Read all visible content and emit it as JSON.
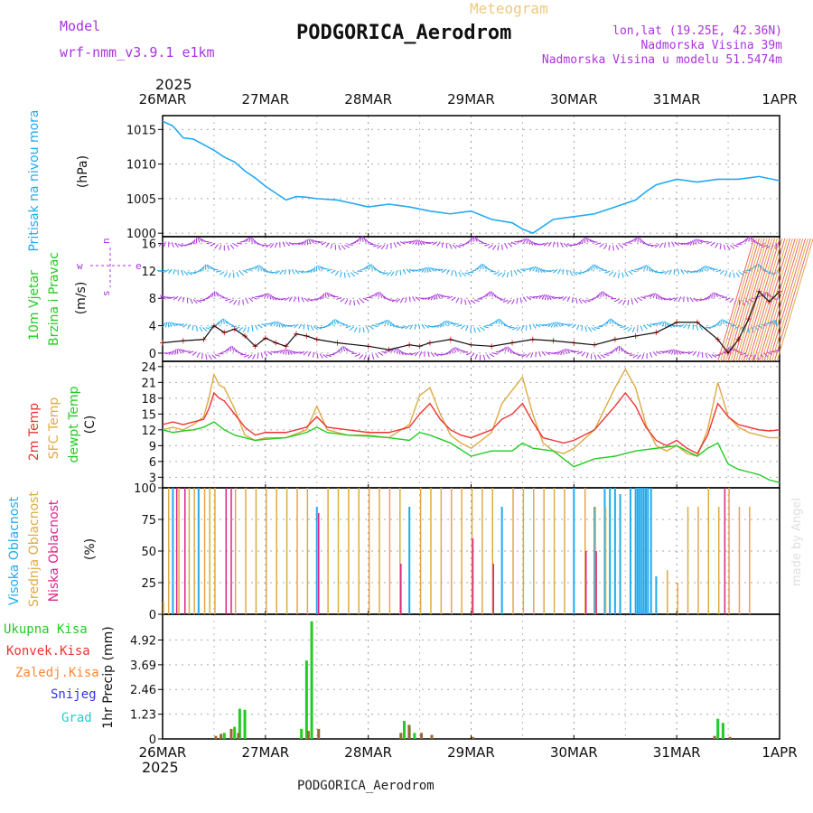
{
  "header": {
    "model_label": "Model",
    "model_name": "wrf-nmm_v3.9.1 e1km",
    "meteogram_label": "Meteogram",
    "station": "PODGORICA_Aerodrom",
    "coords": "lon,lat (19.25E, 42.36N)",
    "elevation": "Nadmorska Visina 39m",
    "model_elevation": "Nadmorska Visina u modelu 51.5474m",
    "year": "2025"
  },
  "footer": {
    "station": "PODGORICA_Aerodrom",
    "year": "2025",
    "credit": "made by Angel"
  },
  "colors": {
    "pressure": "#22aaee",
    "wind_label": "#22cc22",
    "wind_kt": "#aa33dd",
    "t2m": "#ee3333",
    "sfc": "#ddaa44",
    "dewpt": "#22cc22",
    "high_cloud": "#22aaee",
    "mid_cloud": "#ddaa44",
    "low_cloud": "#dd2288",
    "ukupna": "#22cc22",
    "konvek": "#ee3333",
    "zaledj": "#ff8833",
    "snijeg": "#3333ee",
    "grad": "#22cccc"
  },
  "chart_data": [
    {
      "type": "line",
      "panel": "pressure",
      "title": "",
      "ylabel_left": "Pritisak na nivou mora",
      "ylabel_unit": "(hPa)",
      "x_categories": [
        "26MAR",
        "27MAR",
        "28MAR",
        "29MAR",
        "30MAR",
        "31MAR",
        "1APR"
      ],
      "yticks": [
        1000,
        1005,
        1010,
        1015
      ],
      "ylim": [
        999.5,
        1017
      ],
      "series": [
        {
          "x": [
            0,
            0.1,
            0.2,
            0.3,
            0.5,
            0.6,
            0.7,
            0.8,
            0.9,
            1.0,
            1.1,
            1.2,
            1.3,
            1.4,
            1.5,
            1.7,
            2.0,
            2.2,
            2.4,
            2.6,
            2.8,
            3.0,
            3.2,
            3.4,
            3.5,
            3.6,
            3.8,
            4.0,
            4.2,
            4.4,
            4.6,
            4.7,
            4.8,
            5.0,
            5.2,
            5.4,
            5.6,
            5.8,
            6.0
          ],
          "y": [
            1016.2,
            1015.5,
            1013.8,
            1013.6,
            1012.0,
            1011.0,
            1010.3,
            1009.0,
            1008.0,
            1006.8,
            1005.8,
            1004.8,
            1005.3,
            1005.2,
            1005.0,
            1004.8,
            1003.8,
            1004.2,
            1003.8,
            1003.2,
            1002.8,
            1003.2,
            1002.0,
            1001.5,
            1000.6,
            1000.0,
            1002.0,
            1002.4,
            1002.8,
            1003.8,
            1004.8,
            1006.0,
            1007.0,
            1007.8,
            1007.4,
            1007.8,
            1007.8,
            1008.2,
            1007.6
          ]
        }
      ]
    },
    {
      "type": "line",
      "panel": "wind",
      "title": "",
      "ylabel_left": [
        "10m Vjetar",
        "Brzina i Pravac"
      ],
      "ylabel_unit": "(m/s)",
      "compass": [
        "w",
        "s",
        "n",
        "e"
      ],
      "yticks": [
        0,
        4,
        8,
        12,
        16
      ],
      "ylim": [
        -1.2,
        17
      ],
      "series": [
        {
          "name": "speed",
          "x": [
            0,
            0.2,
            0.4,
            0.5,
            0.6,
            0.7,
            0.8,
            0.9,
            1.0,
            1.1,
            1.2,
            1.3,
            1.4,
            1.5,
            1.7,
            2.0,
            2.2,
            2.4,
            2.5,
            2.6,
            2.8,
            3.0,
            3.2,
            3.4,
            3.6,
            3.8,
            4.0,
            4.2,
            4.4,
            4.6,
            4.8,
            5.0,
            5.2,
            5.4,
            5.5,
            5.6,
            5.7,
            5.8,
            5.9,
            6.0
          ],
          "y": [
            1.5,
            1.8,
            2.0,
            4.0,
            3.0,
            3.5,
            2.5,
            1.0,
            2.2,
            1.5,
            1.0,
            2.8,
            2.5,
            2.0,
            1.5,
            1.0,
            0.5,
            1.2,
            1.0,
            1.5,
            2.0,
            1.2,
            1.0,
            1.5,
            2.0,
            1.8,
            1.5,
            1.2,
            2.0,
            2.5,
            3.0,
            4.5,
            4.5,
            2.0,
            0.0,
            2.0,
            5.0,
            9.0,
            7.5,
            9.0
          ]
        }
      ]
    },
    {
      "type": "line",
      "panel": "temperature",
      "title": "",
      "ylabel_left": [
        "2m Temp",
        "SFC Temp",
        "dewpt Temp"
      ],
      "ylabel_unit": "(C)",
      "yticks": [
        3,
        6,
        9,
        12,
        15,
        18,
        21,
        24
      ],
      "ylim": [
        1,
        25
      ],
      "series": [
        {
          "name": "2m Temp",
          "x": [
            0,
            0.1,
            0.2,
            0.3,
            0.4,
            0.45,
            0.5,
            0.55,
            0.6,
            0.7,
            0.8,
            0.9,
            1.0,
            1.2,
            1.4,
            1.5,
            1.6,
            1.8,
            2.0,
            2.2,
            2.4,
            2.5,
            2.6,
            2.7,
            2.8,
            2.9,
            3.0,
            3.2,
            3.3,
            3.4,
            3.5,
            3.6,
            3.7,
            3.8,
            3.9,
            4.0,
            4.2,
            4.4,
            4.5,
            4.6,
            4.7,
            4.8,
            4.9,
            5.0,
            5.1,
            5.2,
            5.3,
            5.4,
            5.5,
            5.6,
            5.7,
            5.8,
            5.9,
            6.0
          ],
          "y": [
            13.0,
            13.5,
            13.0,
            13.5,
            14.0,
            16.0,
            19.0,
            18.0,
            17.5,
            15.0,
            12.5,
            11.0,
            11.5,
            11.5,
            12.5,
            14.5,
            12.5,
            12.0,
            11.5,
            11.5,
            12.5,
            15.0,
            17.0,
            14.0,
            12.0,
            11.0,
            10.5,
            12.0,
            14.0,
            15.0,
            17.0,
            13.5,
            10.5,
            10.0,
            9.5,
            10.0,
            12.0,
            16.5,
            19.0,
            16.5,
            12.5,
            10.0,
            9.0,
            10.0,
            8.5,
            7.5,
            11.0,
            17.0,
            14.5,
            13.0,
            12.5,
            12.0,
            11.8,
            12.0
          ]
        },
        {
          "name": "SFC Temp",
          "x": [
            0,
            0.1,
            0.2,
            0.3,
            0.4,
            0.45,
            0.5,
            0.55,
            0.6,
            0.7,
            0.8,
            0.9,
            1.0,
            1.2,
            1.4,
            1.5,
            1.6,
            1.8,
            2.0,
            2.2,
            2.4,
            2.5,
            2.6,
            2.7,
            2.8,
            2.9,
            3.0,
            3.2,
            3.3,
            3.4,
            3.5,
            3.6,
            3.7,
            3.8,
            3.9,
            4.0,
            4.2,
            4.4,
            4.5,
            4.6,
            4.7,
            4.8,
            4.9,
            5.0,
            5.1,
            5.2,
            5.3,
            5.4,
            5.5,
            5.6,
            5.7,
            5.8,
            5.9,
            6.0
          ],
          "y": [
            12.0,
            12.5,
            12.0,
            13.0,
            14.5,
            18.0,
            22.5,
            20.5,
            20.0,
            16.0,
            11.0,
            10.0,
            10.5,
            10.5,
            12.0,
            16.5,
            12.0,
            11.0,
            11.0,
            10.5,
            13.0,
            18.5,
            20.0,
            15.0,
            11.0,
            9.5,
            8.5,
            11.5,
            17.0,
            19.5,
            22.0,
            15.0,
            9.5,
            8.0,
            7.5,
            8.5,
            12.0,
            20.0,
            23.5,
            20.0,
            13.0,
            9.0,
            8.0,
            9.0,
            7.5,
            7.0,
            12.0,
            21.0,
            14.5,
            12.5,
            11.5,
            11.0,
            10.5,
            10.5
          ]
        },
        {
          "name": "dewpt Temp",
          "x": [
            0,
            0.1,
            0.2,
            0.3,
            0.4,
            0.5,
            0.6,
            0.7,
            0.8,
            0.9,
            1.0,
            1.2,
            1.4,
            1.5,
            1.6,
            1.8,
            2.0,
            2.2,
            2.4,
            2.5,
            2.6,
            2.8,
            3.0,
            3.2,
            3.4,
            3.5,
            3.6,
            3.8,
            4.0,
            4.2,
            4.4,
            4.5,
            4.6,
            4.8,
            5.0,
            5.2,
            5.3,
            5.4,
            5.5,
            5.6,
            5.7,
            5.8,
            5.9,
            6.0
          ],
          "y": [
            12.0,
            11.5,
            11.8,
            12.0,
            12.5,
            13.5,
            12.0,
            11.0,
            10.5,
            10.0,
            10.2,
            10.5,
            11.5,
            12.5,
            11.5,
            11.0,
            10.8,
            10.5,
            10.0,
            11.5,
            11.0,
            9.5,
            7.0,
            8.0,
            8.0,
            9.5,
            8.5,
            8.0,
            5.0,
            6.5,
            7.0,
            7.5,
            8.0,
            8.5,
            9.0,
            7.0,
            8.5,
            9.5,
            5.5,
            4.5,
            4.0,
            3.5,
            2.5,
            2.0
          ]
        }
      ]
    },
    {
      "type": "bar",
      "panel": "clouds",
      "title": "",
      "ylabel_left": [
        "Visoka Oblacnost",
        "Srednja Oblacnost",
        "Niska Oblacnost"
      ],
      "ylabel_unit": "(%)",
      "yticks": [
        0,
        25,
        50,
        75,
        100
      ],
      "ylim": [
        0,
        100
      ],
      "series": [
        {
          "name": "Visoka Oblacnost",
          "x": [
            0.1,
            0.35,
            1.5,
            2.4,
            3.3,
            4.0,
            4.2,
            4.3,
            4.35,
            4.4,
            4.45,
            4.55,
            4.6,
            4.62,
            4.64,
            4.66,
            4.68,
            4.7,
            4.72,
            4.75,
            4.8
          ],
          "values": [
            100,
            100,
            85,
            85,
            85,
            100,
            85,
            100,
            100,
            100,
            95,
            100,
            100,
            100,
            100,
            100,
            100,
            100,
            100,
            100,
            30
          ]
        },
        {
          "name": "Srednja Oblacnost",
          "x": [
            0.0,
            0.05,
            0.15,
            0.25,
            0.3,
            0.4,
            0.45,
            0.5,
            0.7,
            0.8,
            0.9,
            1.0,
            1.1,
            1.2,
            1.3,
            1.4,
            1.6,
            1.7,
            1.8,
            1.9,
            2.0,
            2.1,
            2.2,
            2.3,
            2.5,
            2.6,
            2.7,
            2.8,
            2.9,
            3.0,
            3.1,
            3.2,
            3.4,
            3.5,
            3.6,
            3.7,
            3.8,
            3.9,
            4.1,
            4.2,
            4.3,
            4.9,
            5.0,
            5.1,
            5.2,
            5.3,
            5.4,
            5.5,
            5.6,
            5.7
          ],
          "values": [
            10,
            100,
            100,
            100,
            100,
            100,
            100,
            100,
            100,
            100,
            100,
            100,
            100,
            100,
            100,
            100,
            100,
            100,
            100,
            100,
            100,
            100,
            100,
            100,
            100,
            100,
            100,
            100,
            100,
            100,
            100,
            100,
            100,
            100,
            100,
            100,
            100,
            100,
            100,
            85,
            85,
            35,
            25,
            85,
            85,
            100,
            85,
            100,
            85,
            85
          ]
        },
        {
          "name": "Niska Oblacnost",
          "x": [
            0.12,
            0.2,
            0.6,
            0.65,
            1.5,
            2.3,
            3.0,
            3.2,
            4.1,
            4.2,
            5.45
          ],
          "values": [
            100,
            100,
            100,
            100,
            80,
            40,
            60,
            40,
            50,
            50,
            100
          ]
        }
      ]
    },
    {
      "type": "bar",
      "panel": "precip",
      "title": "",
      "ylabel_left": [
        "Ukupna Kisa",
        "Konvek.Kisa",
        "Zaledj.Kisa",
        "Snijeg",
        "Grad"
      ],
      "ylabel_unit": "1hr Precip (mm)",
      "yticks": [
        0,
        1.23,
        2.46,
        3.69,
        4.92
      ],
      "ylim": [
        0,
        6.2
      ],
      "series": [
        {
          "name": "Ukupna Kisa",
          "x": [
            0.6,
            0.7,
            0.75,
            0.8,
            1.35,
            1.4,
            1.45,
            2.35,
            2.4,
            2.45,
            5.4,
            5.45
          ],
          "values": [
            0.3,
            0.6,
            1.5,
            1.45,
            0.5,
            3.9,
            5.85,
            0.9,
            0.6,
            0.3,
            1.0,
            0.8
          ]
        },
        {
          "name": "Konvek.Kisa",
          "x": [
            0.5,
            0.55,
            0.65,
            0.72,
            1.4,
            1.5,
            2.3,
            2.38,
            2.5,
            2.6,
            3.0,
            5.35,
            5.5
          ],
          "values": [
            0.15,
            0.25,
            0.5,
            0.3,
            0.4,
            0.5,
            0.3,
            0.7,
            0.3,
            0.2,
            0.1,
            0.15,
            0.1
          ]
        }
      ]
    }
  ]
}
